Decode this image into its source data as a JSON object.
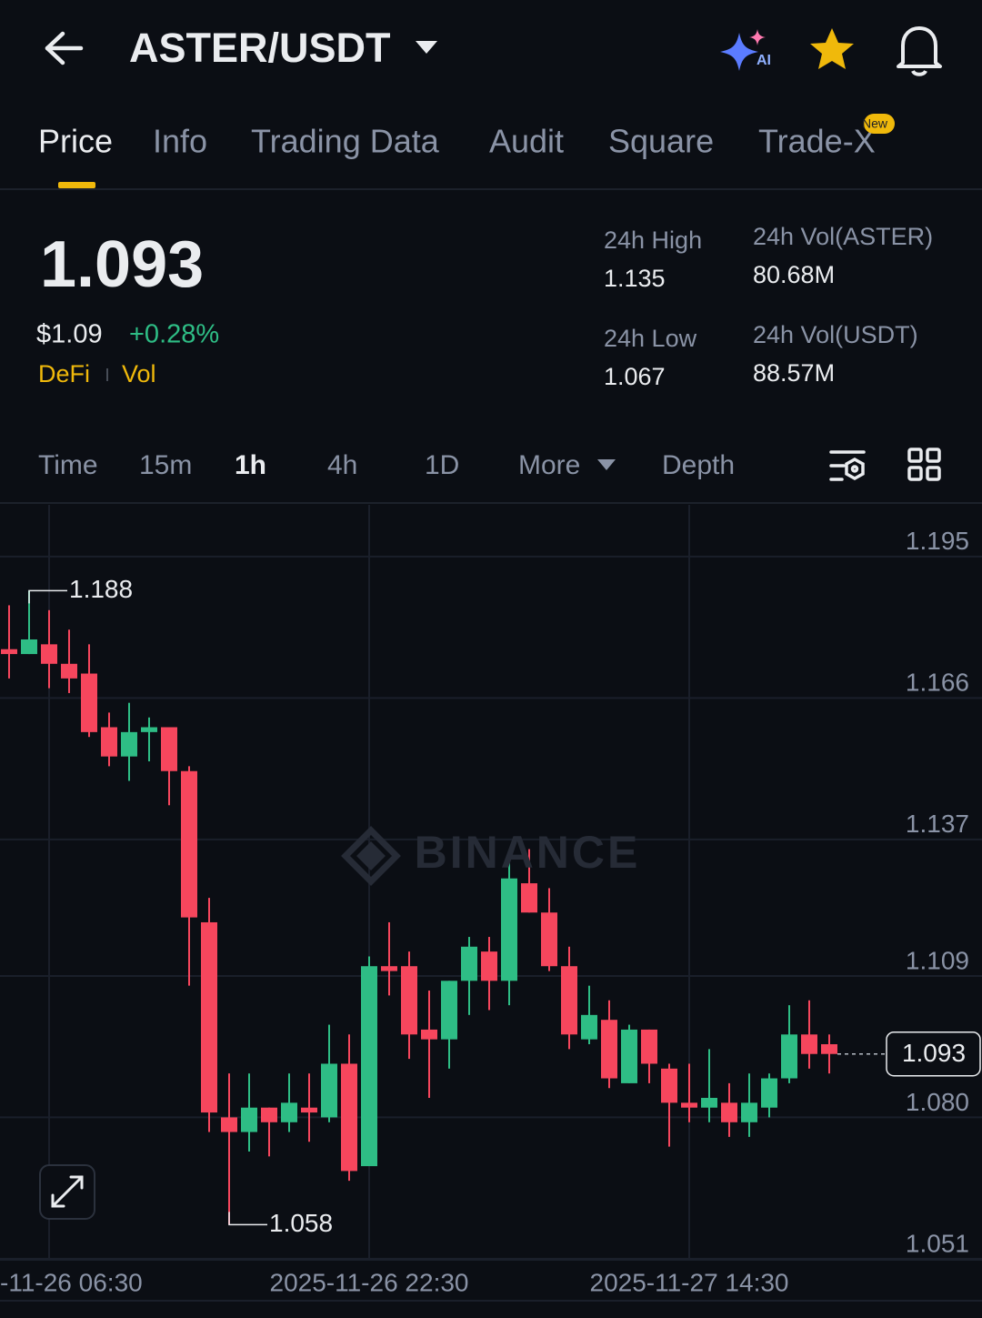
{
  "header": {
    "title": "ASTER/USDT"
  },
  "tabs": [
    "Price",
    "Info",
    "Trading Data",
    "Audit",
    "Square",
    "Trade-X"
  ],
  "tab_badge": "New",
  "ticker": {
    "last_price": "1.093",
    "usd_price": "$1.09",
    "change": "+0.28%",
    "tags": [
      "DeFi",
      "Vol"
    ],
    "stats": [
      {
        "label": "24h High",
        "value": "1.135"
      },
      {
        "label": "24h Vol(ASTER)",
        "value": "80.68M"
      },
      {
        "label": "24h Low",
        "value": "1.067"
      },
      {
        "label": "24h Vol(USDT)",
        "value": "88.57M"
      }
    ]
  },
  "intervals": [
    "Time",
    "15m",
    "1h",
    "4h",
    "1D",
    "More",
    "Depth"
  ],
  "chart_data": {
    "type": "candlestick",
    "watermark": "BINANCE",
    "categories": [
      null,
      null,
      "-11-26 06:30",
      null,
      null,
      null,
      null,
      null,
      null,
      null,
      null,
      null,
      null,
      null,
      null,
      null,
      null,
      null,
      "2025-11-26 22:30",
      null,
      null,
      null,
      null,
      null,
      null,
      null,
      null,
      null,
      null,
      null,
      null,
      null,
      null,
      null,
      "2025-11-27 14:30",
      null,
      null,
      null,
      null,
      null,
      null,
      null
    ],
    "open": [
      1.176,
      1.175,
      1.177,
      1.173,
      1.171,
      1.16,
      1.154,
      1.159,
      1.16,
      1.151,
      1.12,
      1.08,
      1.077,
      1.082,
      1.079,
      1.082,
      1.08,
      1.091,
      1.07,
      1.111,
      1.111,
      1.098,
      1.096,
      1.108,
      1.114,
      1.108,
      1.128,
      1.122,
      1.111,
      1.096,
      1.1,
      1.087,
      1.098,
      1.09,
      1.083,
      1.082,
      1.083,
      1.079,
      1.082,
      1.088,
      1.097,
      1.095
    ],
    "high": [
      1.185,
      1.188,
      1.184,
      1.18,
      1.177,
      1.163,
      1.165,
      1.162,
      1.16,
      1.152,
      1.125,
      1.089,
      1.089,
      1.082,
      1.089,
      1.089,
      1.099,
      1.097,
      1.113,
      1.12,
      1.114,
      1.106,
      1.108,
      1.117,
      1.117,
      1.134,
      1.135,
      1.127,
      1.115,
      1.107,
      1.104,
      1.099,
      1.098,
      1.091,
      1.091,
      1.094,
      1.087,
      1.089,
      1.089,
      1.103,
      1.104,
      1.097
    ],
    "low": [
      1.17,
      1.175,
      1.168,
      1.167,
      1.158,
      1.152,
      1.149,
      1.153,
      1.144,
      1.107,
      1.077,
      1.058,
      1.073,
      1.072,
      1.077,
      1.075,
      1.079,
      1.067,
      1.07,
      1.105,
      1.092,
      1.084,
      1.09,
      1.101,
      1.102,
      1.103,
      1.122,
      1.11,
      1.094,
      1.095,
      1.086,
      1.087,
      1.087,
      1.074,
      1.079,
      1.079,
      1.076,
      1.076,
      1.08,
      1.087,
      1.09,
      1.089
    ],
    "close": [
      1.175,
      1.178,
      1.173,
      1.17,
      1.159,
      1.154,
      1.159,
      1.16,
      1.151,
      1.121,
      1.081,
      1.077,
      1.082,
      1.079,
      1.083,
      1.081,
      1.091,
      1.069,
      1.111,
      1.11,
      1.097,
      1.096,
      1.108,
      1.115,
      1.108,
      1.129,
      1.122,
      1.111,
      1.097,
      1.101,
      1.088,
      1.098,
      1.091,
      1.083,
      1.082,
      1.084,
      1.079,
      1.083,
      1.088,
      1.097,
      1.093,
      1.093
    ],
    "up_color": "#2ebd85",
    "down_color": "#f6465d",
    "ylim": [
      1.0508,
      1.2056
    ],
    "yticks": [
      1.195,
      1.166,
      1.137,
      1.109,
      {
        "value": 1.08,
        "label": "1.080"
      },
      1.051
    ],
    "grid": true,
    "max_label": 1.188,
    "min_label": 1.058,
    "last_price": 1.093
  }
}
